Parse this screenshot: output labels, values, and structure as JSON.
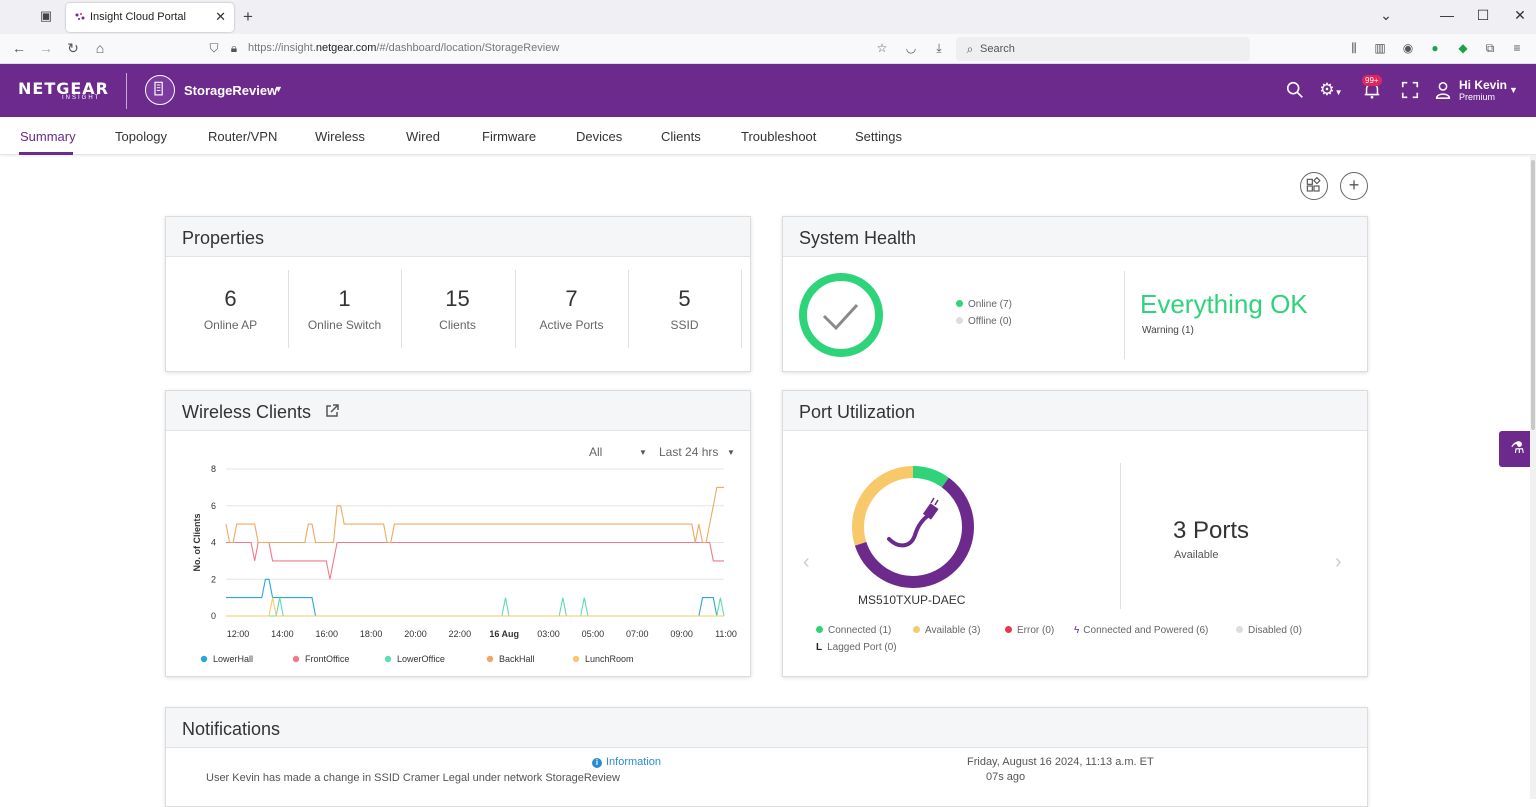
{
  "browser": {
    "tab_title": "Insight Cloud Portal",
    "url_prefix": "https://insight.",
    "url_domain": "netgear.com",
    "url_path": "/#/dashboard/location/StorageReview",
    "search_placeholder": "Search"
  },
  "header": {
    "logo": "NETGEAR",
    "logo_sub": "INSIGHT",
    "org_name": "StorageReview",
    "badge": "99+",
    "greeting": "Hi Kevin",
    "plan": "Premium",
    "brand_color": "#6b2a8c"
  },
  "tabs": [
    "Summary",
    "Topology",
    "Router/VPN",
    "Wireless",
    "Wired",
    "Firmware",
    "Devices",
    "Clients",
    "Troubleshoot",
    "Settings"
  ],
  "properties": {
    "title": "Properties",
    "items": [
      {
        "value": "6",
        "label": "Online AP"
      },
      {
        "value": "1",
        "label": "Online Switch"
      },
      {
        "value": "15",
        "label": "Clients"
      },
      {
        "value": "7",
        "label": "Active Ports"
      },
      {
        "value": "5",
        "label": "SSID"
      }
    ]
  },
  "system_health": {
    "title": "System Health",
    "online": "Online (7)",
    "offline": "Offline (0)",
    "status": "Everything OK",
    "warning": "Warning (1)",
    "ok_color": "#2fd47a"
  },
  "wireless_clients": {
    "title": "Wireless Clients",
    "filter_all": "All",
    "filter_range": "Last 24 hrs"
  },
  "chart_data": {
    "type": "line",
    "title": "",
    "xlabel": "",
    "ylabel": "No. of Clients",
    "ylim": [
      0,
      8
    ],
    "y_ticks": [
      0,
      2,
      4,
      6,
      8
    ],
    "x_ticks": [
      "12:00",
      "14:00",
      "16:00",
      "18:00",
      "20:00",
      "22:00",
      "16 Aug",
      "03:00",
      "05:00",
      "07:00",
      "09:00",
      "11:00"
    ],
    "legend_position": "bottom",
    "series": [
      {
        "name": "LowerHall",
        "color": "#2aa7d8",
        "values": [
          1,
          1,
          1,
          1,
          1,
          1,
          1,
          1,
          1,
          1,
          1,
          2,
          2,
          1,
          1,
          1,
          1,
          1,
          1,
          1,
          1,
          1,
          1,
          1,
          1,
          0,
          0,
          0,
          0,
          0,
          0,
          0,
          0,
          0,
          0,
          0,
          0,
          0,
          0,
          0,
          0,
          0,
          0,
          0,
          0,
          0,
          0,
          0,
          0,
          0,
          0,
          0,
          0,
          0,
          0,
          0,
          0,
          0,
          0,
          0,
          0,
          0,
          0,
          0,
          0,
          0,
          0,
          0,
          0,
          0,
          0,
          0,
          0,
          0,
          0,
          0,
          0,
          0,
          0,
          0,
          0,
          0,
          0,
          0,
          0,
          0,
          0,
          0,
          0,
          0,
          0,
          0,
          0,
          0,
          0,
          0,
          0,
          0,
          0,
          0,
          0,
          0,
          0,
          0,
          0,
          0,
          0,
          0,
          0,
          0,
          0,
          0,
          0,
          0,
          0,
          0,
          0,
          0,
          0,
          0,
          0,
          0,
          0,
          0,
          0,
          0,
          0,
          0,
          0,
          0,
          0,
          0,
          0,
          1,
          1,
          1,
          1,
          0,
          0,
          0
        ]
      },
      {
        "name": "FrontOffice",
        "color": "#f07a8a",
        "values": [
          4,
          4,
          4,
          4,
          4,
          4,
          4,
          4,
          3,
          4,
          4,
          4,
          4,
          3,
          3,
          3,
          3,
          3,
          3,
          3,
          3,
          3,
          3,
          3,
          3,
          3,
          3,
          3,
          3,
          2,
          3,
          4,
          4,
          4,
          4,
          4,
          4,
          4,
          4,
          4,
          4,
          4,
          4,
          4,
          4,
          4,
          4,
          4,
          4,
          4,
          4,
          4,
          4,
          4,
          4,
          4,
          4,
          4,
          4,
          4,
          4,
          4,
          4,
          4,
          4,
          4,
          4,
          4,
          4,
          4,
          4,
          4,
          4,
          4,
          4,
          4,
          4,
          4,
          4,
          4,
          4,
          4,
          4,
          4,
          4,
          4,
          4,
          4,
          4,
          4,
          4,
          4,
          4,
          4,
          4,
          4,
          4,
          4,
          4,
          4,
          4,
          4,
          4,
          4,
          4,
          4,
          4,
          4,
          4,
          4,
          4,
          4,
          4,
          4,
          4,
          4,
          4,
          4,
          4,
          4,
          4,
          4,
          4,
          4,
          4,
          4,
          4,
          4,
          4,
          4,
          4,
          4,
          4,
          4,
          4,
          4,
          3,
          3,
          3,
          3
        ]
      },
      {
        "name": "LowerOffice",
        "color": "#5fdcb0",
        "values": [
          0,
          0,
          0,
          0,
          0,
          0,
          0,
          0,
          0,
          0,
          0,
          0,
          0,
          0,
          0,
          1,
          0,
          0,
          0,
          0,
          0,
          0,
          0,
          0,
          0,
          0,
          0,
          0,
          0,
          0,
          0,
          0,
          0,
          0,
          0,
          0,
          0,
          0,
          0,
          0,
          0,
          0,
          0,
          0,
          0,
          0,
          0,
          0,
          0,
          0,
          0,
          0,
          0,
          0,
          0,
          0,
          0,
          0,
          0,
          0,
          0,
          0,
          0,
          0,
          0,
          0,
          0,
          0,
          0,
          0,
          0,
          0,
          0,
          0,
          0,
          0,
          0,
          0,
          1,
          0,
          0,
          0,
          0,
          0,
          0,
          0,
          0,
          0,
          0,
          0,
          0,
          0,
          0,
          0,
          1,
          0,
          0,
          0,
          0,
          0,
          1,
          0,
          0,
          0,
          0,
          0,
          0,
          0,
          0,
          0,
          0,
          0,
          0,
          0,
          0,
          0,
          0,
          0,
          0,
          0,
          0,
          0,
          0,
          0,
          0,
          0,
          0,
          0,
          0,
          0,
          0,
          0,
          0,
          0,
          0,
          0,
          0,
          0,
          1,
          0
        ]
      },
      {
        "name": "BackHall",
        "color": "#f0a860",
        "values": [
          5,
          4,
          4,
          5,
          5,
          5,
          5,
          5,
          5,
          4,
          4,
          4,
          4,
          4,
          4,
          4,
          4,
          4,
          4,
          4,
          4,
          4,
          4,
          5,
          5,
          4,
          4,
          4,
          4,
          4,
          4,
          6,
          6,
          5,
          5,
          5,
          5,
          5,
          5,
          5,
          5,
          5,
          5,
          5,
          5,
          4,
          4,
          5,
          5,
          5,
          5,
          5,
          5,
          5,
          5,
          5,
          5,
          5,
          5,
          5,
          5,
          5,
          5,
          5,
          5,
          5,
          5,
          5,
          5,
          5,
          5,
          5,
          5,
          5,
          5,
          5,
          5,
          5,
          5,
          5,
          5,
          5,
          5,
          5,
          5,
          5,
          5,
          5,
          5,
          5,
          5,
          5,
          5,
          5,
          5,
          5,
          5,
          5,
          5,
          5,
          5,
          5,
          5,
          5,
          5,
          5,
          5,
          5,
          5,
          5,
          5,
          5,
          5,
          5,
          5,
          5,
          5,
          5,
          5,
          5,
          5,
          5,
          5,
          5,
          5,
          5,
          5,
          5,
          5,
          5,
          5,
          4,
          5,
          4,
          4,
          5,
          6,
          7,
          7,
          7
        ]
      },
      {
        "name": "LunchRoom",
        "color": "#f7c96a",
        "values": [
          0,
          0,
          0,
          0,
          0,
          0,
          0,
          0,
          0,
          0,
          0,
          0,
          0,
          1,
          0,
          0,
          0,
          0,
          0,
          0,
          0,
          0,
          0,
          0,
          0,
          0,
          0,
          0,
          0,
          0,
          0,
          0,
          0,
          0,
          0,
          0,
          0,
          0,
          0,
          0,
          0,
          0,
          0,
          0,
          0,
          0,
          0,
          0,
          0,
          0,
          0,
          0,
          0,
          0,
          0,
          0,
          0,
          0,
          0,
          0,
          0,
          0,
          0,
          0,
          0,
          0,
          0,
          0,
          0,
          0,
          0,
          0,
          0,
          0,
          0,
          0,
          0,
          0,
          0,
          0,
          0,
          0,
          0,
          0,
          0,
          0,
          0,
          0,
          0,
          0,
          0,
          0,
          0,
          0,
          0,
          0,
          0,
          0,
          0,
          0,
          0,
          0,
          0,
          0,
          0,
          0,
          0,
          0,
          0,
          0,
          0,
          0,
          0,
          0,
          0,
          0,
          0,
          0,
          0,
          0,
          0,
          0,
          0,
          0,
          0,
          0,
          0,
          0,
          0,
          0,
          0,
          0,
          0,
          0,
          0,
          0,
          0,
          0,
          0,
          0
        ]
      }
    ]
  },
  "port_utilization": {
    "title": "Port Utilization",
    "ports_count": "3 Ports",
    "ports_status": "Available",
    "switch_name": "MS510TXUP-DAEC",
    "connected_fraction": 0.1,
    "available_fraction": 0.3,
    "powered_fraction": 0.6,
    "legend": [
      {
        "label": "Connected (1)",
        "color": "#2fd47a",
        "type": "dot"
      },
      {
        "label": "Available (3)",
        "color": "#f7c96a",
        "type": "dot"
      },
      {
        "label": "Error (0)",
        "color": "#e8384f",
        "type": "dot"
      },
      {
        "label": "Connected and Powered (6)",
        "color": "#6b2a8c",
        "type": "bolt"
      },
      {
        "label": "Disabled (0)",
        "color": "#dddddd",
        "type": "dot"
      },
      {
        "label": "Lagged Port (0)",
        "color": "#222222",
        "type": "L"
      }
    ]
  },
  "notifications": {
    "title": "Notifications",
    "type": "Information",
    "message": "User Kevin has made a change in SSID Cramer Legal under network StorageReview",
    "date": "Friday, August 16 2024, 11:13 a.m. ET",
    "ago": "07s ago"
  }
}
